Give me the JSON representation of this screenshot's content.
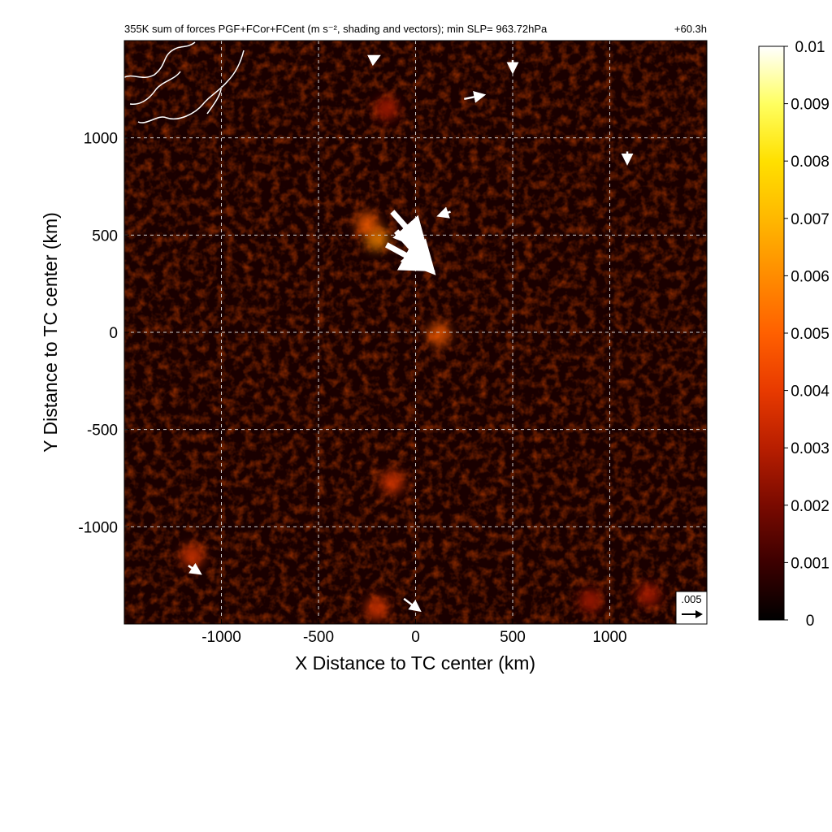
{
  "chart_data": {
    "type": "heatmap",
    "title": "355K sum of forces PGF+FCor+FCent (m s⁻², shading and vectors); min SLP= 963.72hPa",
    "forecast_time": "+60.3h",
    "xlabel": "X Distance to TC center (km)",
    "ylabel": "Y Distance to TC center (km)",
    "xlim": [
      -1500,
      1500
    ],
    "ylim": [
      -1500,
      1500
    ],
    "xticks": [
      -1000,
      -500,
      0,
      500,
      1000
    ],
    "yticks": [
      -1000,
      -500,
      0,
      500,
      1000
    ],
    "xtick_labels": [
      "-1000",
      "-500",
      "0",
      "500",
      "1000"
    ],
    "ytick_labels": [
      "-1000",
      "-500",
      "0",
      "500",
      "1000"
    ],
    "grid": true,
    "colorbar": {
      "min": 0,
      "max": 0.01,
      "ticks": [
        0,
        0.001,
        0.002,
        0.003,
        0.004,
        0.005,
        0.006,
        0.007,
        0.008,
        0.009,
        0.01
      ],
      "tick_labels": [
        "0",
        "0.001",
        "0.002",
        "0.003",
        "0.004",
        "0.005",
        "0.006",
        "0.007",
        "0.008",
        "0.009",
        "0.01"
      ],
      "colors": [
        "#000000",
        "#3c0000",
        "#7a0a00",
        "#b81e00",
        "#e83a00",
        "#ff6000",
        "#ff8c00",
        "#ffb800",
        "#ffe000",
        "#ffff60",
        "#ffffff"
      ]
    },
    "reference_vector": {
      "label": ".005",
      "magnitude": 0.005
    },
    "hotspots": [
      {
        "x": -200,
        "y": 480,
        "value": 0.006
      },
      {
        "x": -250,
        "y": 560,
        "value": 0.005
      },
      {
        "x": -150,
        "y": 1150,
        "value": 0.003
      },
      {
        "x": -1150,
        "y": -1150,
        "value": 0.004
      },
      {
        "x": -120,
        "y": -770,
        "value": 0.004
      },
      {
        "x": 120,
        "y": -10,
        "value": 0.005
      },
      {
        "x": -200,
        "y": -1420,
        "value": 0.004
      },
      {
        "x": 900,
        "y": -1380,
        "value": 0.003
      },
      {
        "x": 1200,
        "y": -1350,
        "value": 0.003
      }
    ],
    "vectors": [
      {
        "x": -100,
        "y": 520,
        "u": 0.009,
        "v": -0.01,
        "note": "large"
      },
      {
        "x": -150,
        "y": 450,
        "u": 0.011,
        "v": -0.006,
        "note": "large"
      },
      {
        "x": -120,
        "y": 620,
        "u": 0.008,
        "v": -0.009,
        "note": "large"
      },
      {
        "x": 180,
        "y": 620,
        "u": -0.003,
        "v": -0.001
      },
      {
        "x": 250,
        "y": 1200,
        "u": 0.005,
        "v": 0.001
      },
      {
        "x": -230,
        "y": 1400,
        "u": 0.002,
        "v": 0.001
      },
      {
        "x": -1170,
        "y": -1200,
        "u": 0.003,
        "v": -0.002
      },
      {
        "x": -60,
        "y": -1370,
        "u": 0.004,
        "v": -0.003
      },
      {
        "x": 1090,
        "y": 930,
        "u": 0,
        "v": -0.003
      },
      {
        "x": 500,
        "y": 1400,
        "u": 0,
        "v": -0.003
      }
    ]
  }
}
